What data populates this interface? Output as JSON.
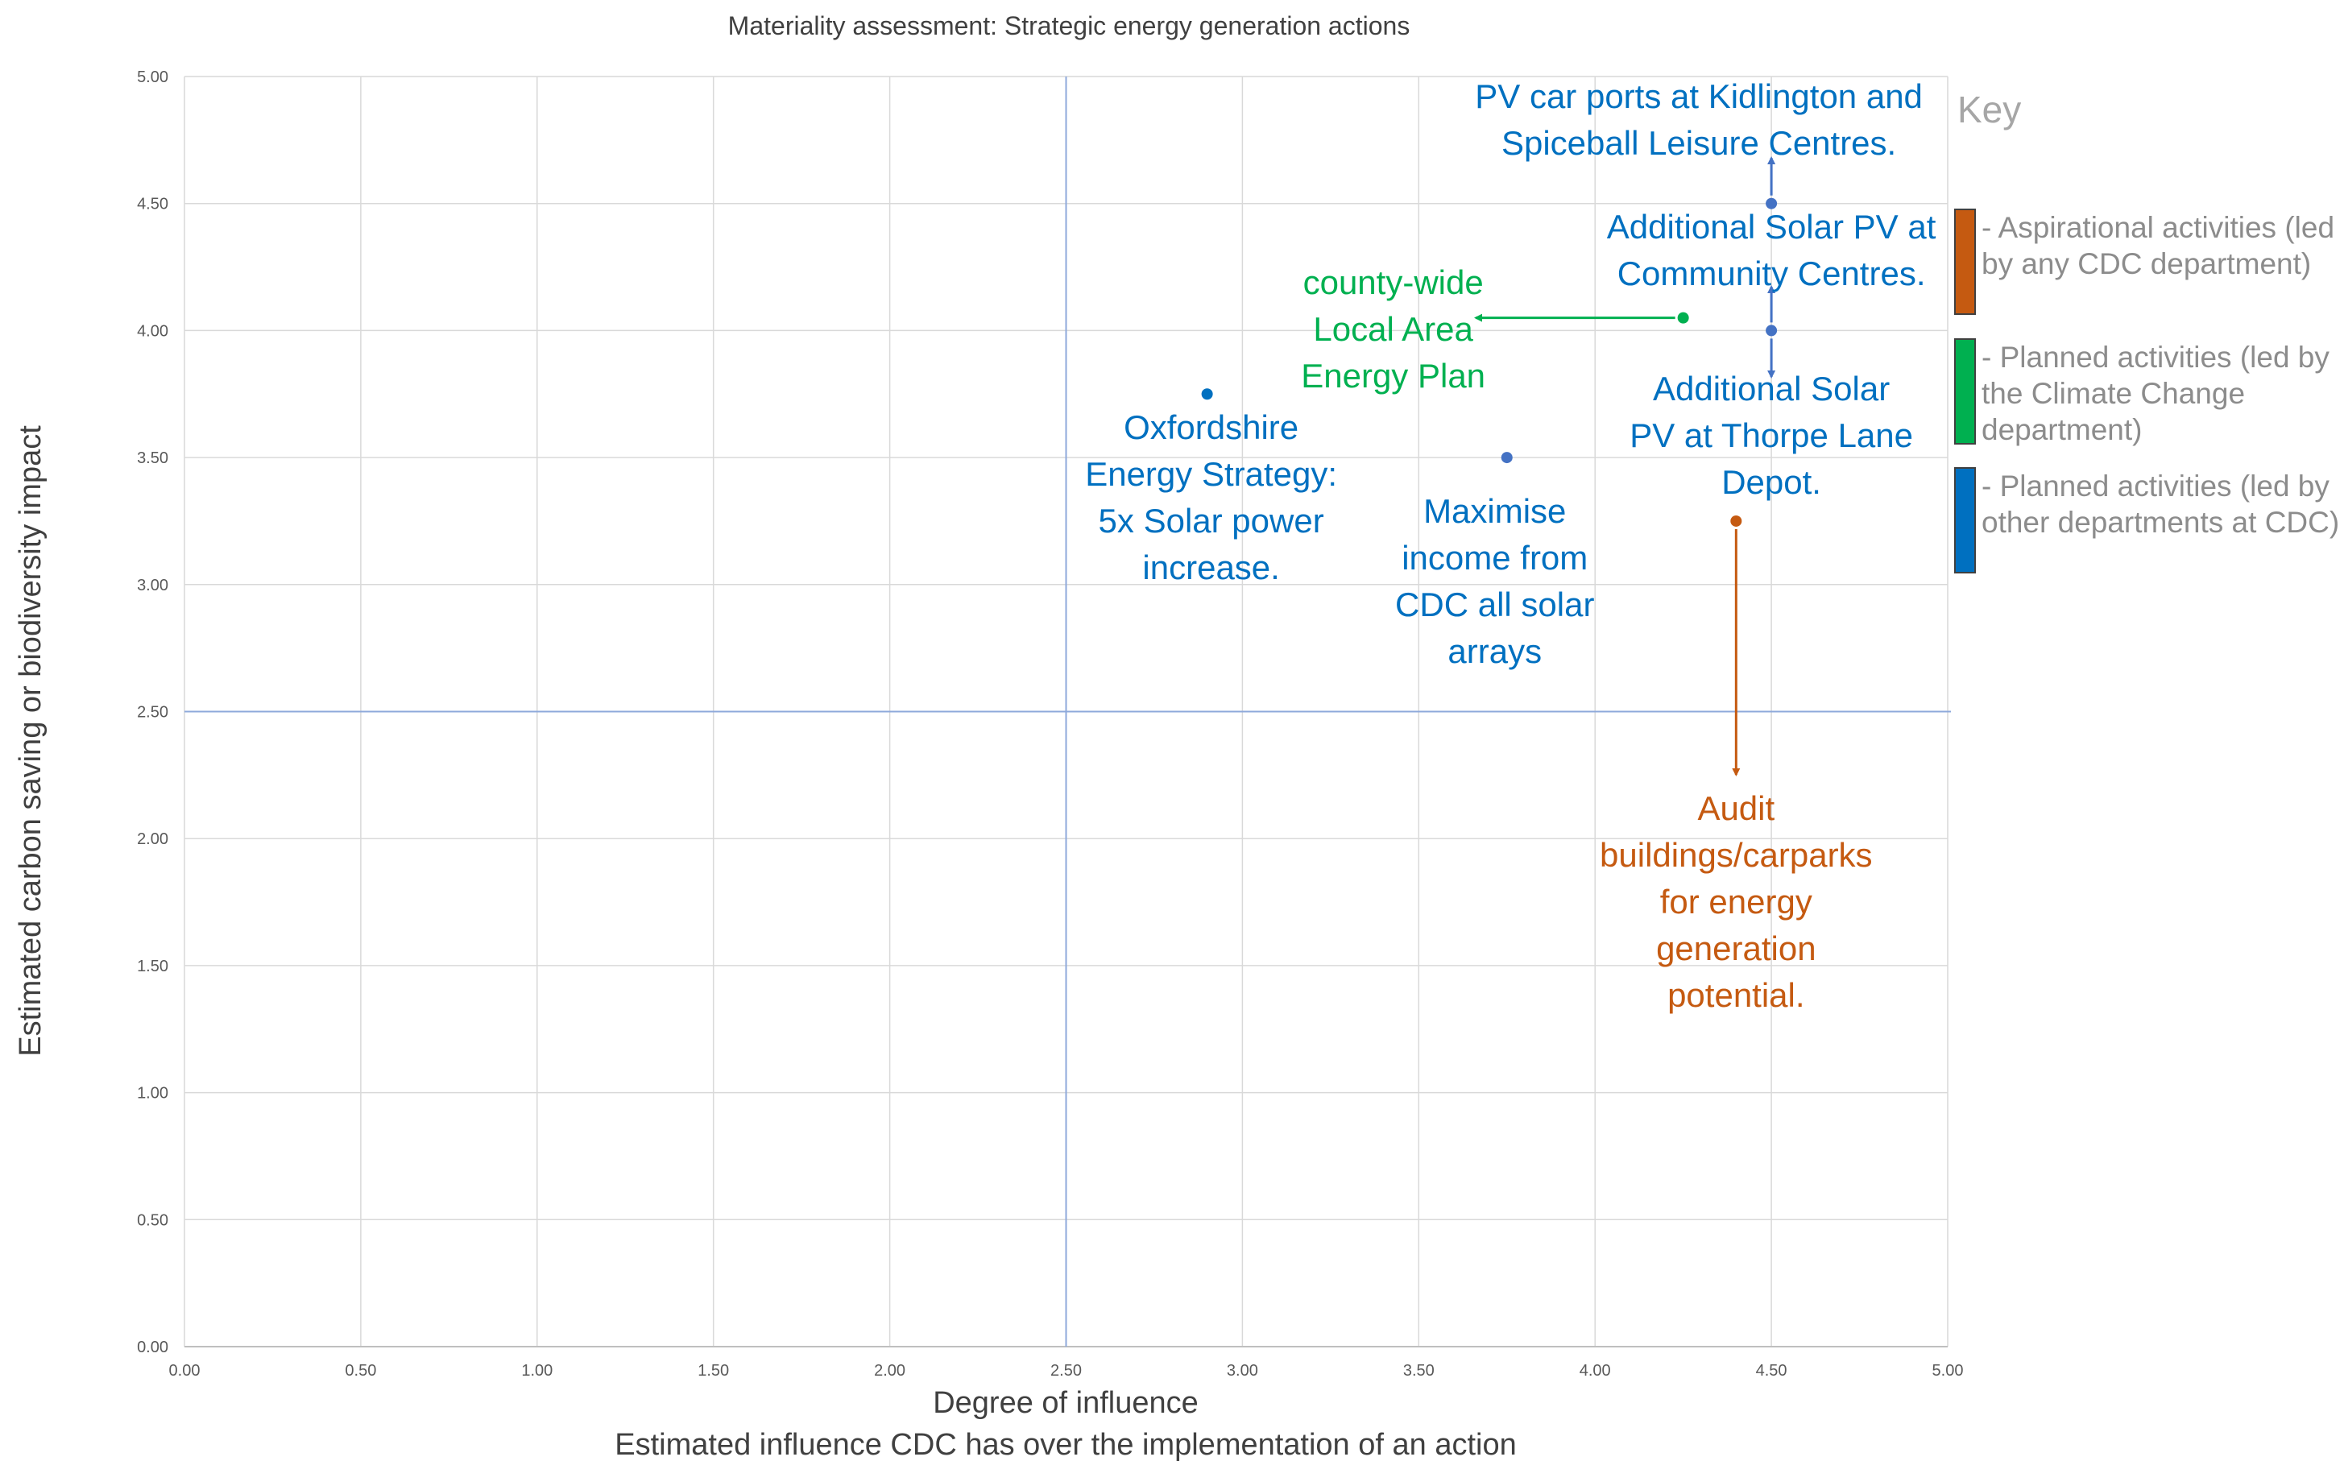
{
  "chart_data": {
    "type": "scatter",
    "title": "Materiality assessment: Strategic energy generation actions",
    "xlabel": "Degree of influence",
    "xlabel_sub": "Estimated influence CDC has over the implementation of an action",
    "ylabel": "Estimated carbon saving or biodiversity impact",
    "xlim": [
      0,
      5
    ],
    "ylim": [
      0,
      5
    ],
    "x_ticks": [
      "0.00",
      "0.50",
      "1.00",
      "1.50",
      "2.00",
      "2.50",
      "3.00",
      "3.50",
      "4.00",
      "4.50",
      "5.00"
    ],
    "y_ticks": [
      "0.00",
      "0.50",
      "1.00",
      "1.50",
      "2.00",
      "2.50",
      "3.00",
      "3.50",
      "4.00",
      "4.50",
      "5.00"
    ],
    "grid": true,
    "quadrant_lines": {
      "x": 2.5,
      "y": 2.5
    },
    "colors": {
      "aspirational": "#c55a11",
      "planned_climate": "#00b050",
      "planned_other": "#0070c0",
      "point_blue": "#4472c4",
      "grid": "#d9d9d9",
      "quadrant": "#8ea9db"
    },
    "points": [
      {
        "x": 2.9,
        "y": 3.75,
        "category": "planned_other",
        "label": [
          "Oxfordshire",
          "Energy Strategy:",
          "5x Solar power",
          "increase."
        ]
      },
      {
        "x": 3.75,
        "y": 3.5,
        "category": "planned_other",
        "label": [
          "Maximise",
          "income from",
          "CDC all solar",
          "arrays"
        ]
      },
      {
        "x": 4.25,
        "y": 4.05,
        "category": "planned_climate",
        "label": [
          "county-wide",
          "Local Area",
          "Energy Plan"
        ]
      },
      {
        "x": 4.5,
        "y": 4.5,
        "category": "planned_other",
        "label": [
          "PV car ports at Kidlington and",
          "Spiceball Leisure Centres."
        ]
      },
      {
        "x": 4.5,
        "y": 4.0,
        "category": "planned_other",
        "label": [
          "Additional Solar PV at",
          "Community Centres."
        ]
      },
      {
        "x": 4.5,
        "y": 4.0,
        "category": "planned_other",
        "label": [
          "Additional Solar",
          "PV at Thorpe Lane",
          "Depot."
        ]
      },
      {
        "x": 4.4,
        "y": 3.25,
        "category": "aspirational",
        "label": [
          "Audit",
          "buildings/carparks",
          "for energy",
          "generation",
          "potential."
        ]
      }
    ],
    "legend": {
      "position": "right",
      "title": "Key",
      "entries": [
        {
          "category": "aspirational",
          "lines": [
            "- Aspirational activities (led",
            "by any CDC department)"
          ]
        },
        {
          "category": "planned_climate",
          "lines": [
            "- Planned activities (led by",
            "the Climate Change",
            "department)"
          ]
        },
        {
          "category": "planned_other",
          "lines": [
            "- Planned activities (led by",
            "other departments at CDC)"
          ]
        }
      ]
    }
  }
}
